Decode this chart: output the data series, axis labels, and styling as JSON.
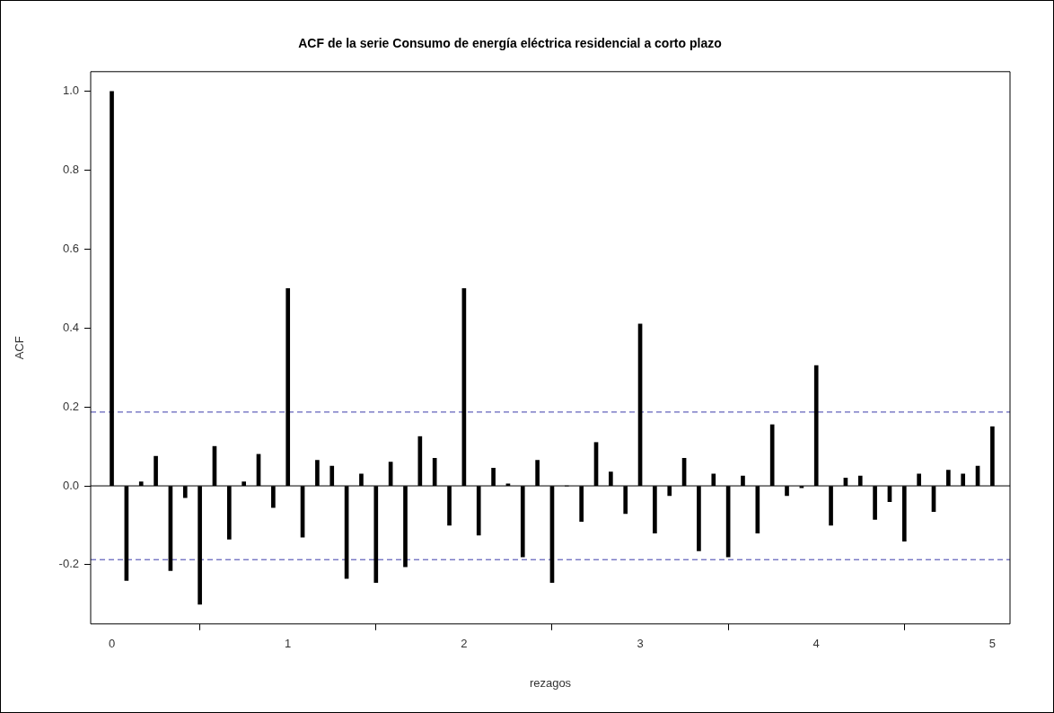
{
  "chart_data": {
    "type": "bar",
    "title": "ACF de la serie Consumo de energía eléctrica residencial a corto plazo",
    "xlabel": "rezagos",
    "ylabel": "ACF",
    "x": [
      0,
      0.0833,
      0.1667,
      0.25,
      0.3333,
      0.4167,
      0.5,
      0.5833,
      0.6667,
      0.75,
      0.8333,
      0.9167,
      1,
      1.0833,
      1.1667,
      1.25,
      1.3333,
      1.4167,
      1.5,
      1.5833,
      1.6667,
      1.75,
      1.8333,
      1.9167,
      2,
      2.0833,
      2.1667,
      2.25,
      2.3333,
      2.4167,
      2.5,
      2.5833,
      2.6667,
      2.75,
      2.8333,
      2.9167,
      3,
      3.0833,
      3.1667,
      3.25,
      3.3333,
      3.4167,
      3.5,
      3.5833,
      3.6667,
      3.75,
      3.8333,
      3.9167,
      4,
      4.0833,
      4.1667,
      4.25,
      4.3333,
      4.4167,
      4.5,
      4.5833,
      4.6667,
      4.75,
      4.8333,
      4.9167,
      5
    ],
    "values": [
      1.0,
      -0.24,
      0.01,
      0.075,
      -0.215,
      -0.03,
      -0.3,
      0.1,
      -0.135,
      0.01,
      0.08,
      -0.055,
      0.5,
      -0.13,
      0.065,
      0.05,
      -0.235,
      0.03,
      -0.245,
      0.06,
      -0.205,
      0.125,
      0.07,
      -0.1,
      0.5,
      -0.125,
      0.045,
      0.005,
      -0.18,
      0.065,
      -0.245,
      0.0,
      -0.09,
      0.11,
      0.035,
      -0.07,
      0.41,
      -0.12,
      -0.025,
      0.07,
      -0.165,
      0.03,
      -0.18,
      0.025,
      -0.12,
      0.155,
      -0.025,
      -0.005,
      0.305,
      -0.1,
      0.02,
      0.025,
      -0.085,
      -0.04,
      -0.14,
      0.03,
      -0.065,
      0.04,
      0.03,
      0.05,
      0.15
    ],
    "color": "#000000",
    "xlim": [
      -0.12,
      5.1
    ],
    "xticks": [
      0,
      1,
      2,
      3,
      4,
      5
    ],
    "ylim": [
      -0.35,
      1.05
    ],
    "yticks": [
      {
        "value": -0.2,
        "label": "-0.2"
      },
      {
        "value": 0,
        "label": "0.0"
      },
      {
        "value": 0.2,
        "label": "0.2"
      },
      {
        "value": 0.4,
        "label": "0.4"
      },
      {
        "value": 0.6,
        "label": "0.6"
      },
      {
        "value": 0.8,
        "label": "0.8"
      },
      {
        "value": 1,
        "label": "1.0"
      }
    ],
    "ref_lines": [
      {
        "axis": "y",
        "value": 0,
        "color": "#000000",
        "line_style": "solid"
      },
      {
        "axis": "y",
        "value": 0.187,
        "color": "#3c3caa",
        "line_style": "dashed"
      },
      {
        "axis": "y",
        "value": -0.187,
        "color": "#3c3caa",
        "line_style": "dashed"
      }
    ]
  }
}
